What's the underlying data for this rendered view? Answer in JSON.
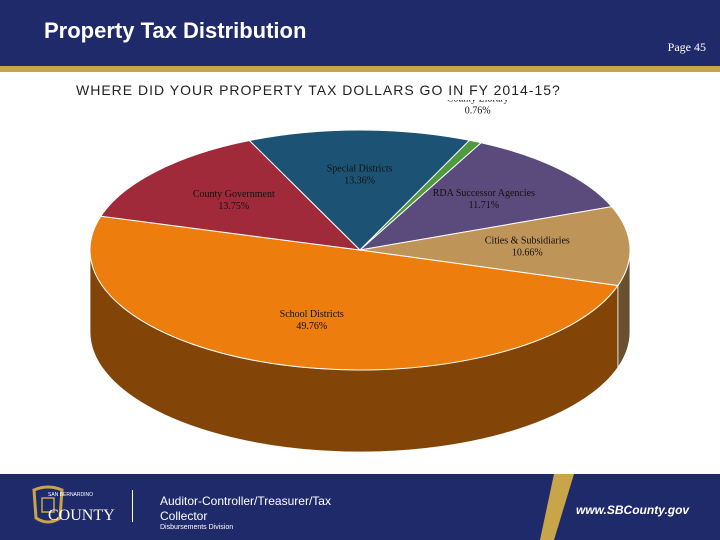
{
  "header": {
    "title": "Property Tax Distribution",
    "page_label": "Page 45"
  },
  "subtitle": "WHERE DID YOUR PROPERTY TAX DOLLARS GO IN FY 2014-15?",
  "chart_data": {
    "type": "pie",
    "title": "WHERE DID YOUR PROPERTY TAX DOLLARS GO IN FY 2014-15?",
    "three_d": true,
    "slices": [
      {
        "label": "School Districts",
        "value": 49.76,
        "value_label": "49.76%",
        "color": "#ed7d0d"
      },
      {
        "label": "County Government",
        "value": 13.75,
        "value_label": "13.75%",
        "color": "#a12a3a"
      },
      {
        "label": "Special Districts",
        "value": 13.36,
        "value_label": "13.36%",
        "color": "#1c5375"
      },
      {
        "label": "County Library",
        "value": 0.76,
        "value_label": "0.76%",
        "color": "#4e9a3d"
      },
      {
        "label": "RDA Successor Agencies",
        "value": 11.71,
        "value_label": "11.71%",
        "color": "#5b4a7c"
      },
      {
        "label": "Cities & Subsidiaries",
        "value": 10.66,
        "value_label": "10.66%",
        "color": "#bf9458"
      }
    ]
  },
  "footer": {
    "logo_small_text": "SAN BERNARDINO",
    "logo_text": "COUNTY",
    "office": "Auditor-Controller/Treasurer/Tax Collector",
    "division": "Disbursements Division",
    "website": "www.SBCounty.gov"
  }
}
